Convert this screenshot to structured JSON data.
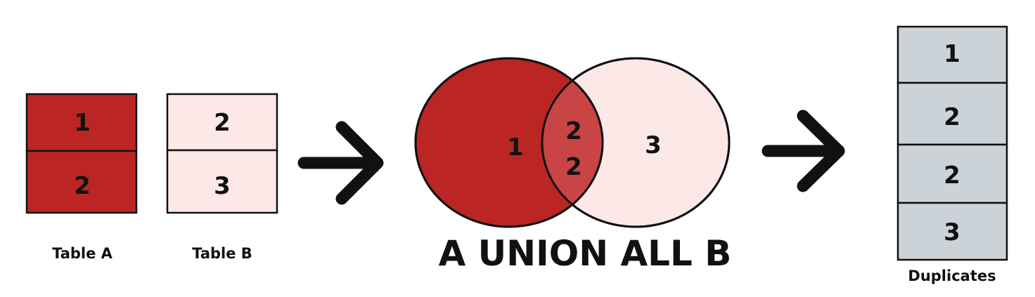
{
  "colors": {
    "table_a_fill": "#bb2524",
    "table_b_fill": "#fde8e8",
    "result_fill": "#cbd2d8",
    "overlap_fill": "#c94444",
    "stroke": "#111111"
  },
  "table_a": {
    "label": "Table A",
    "rows": [
      "1",
      "2"
    ]
  },
  "table_b": {
    "label": "Table B",
    "rows": [
      "2",
      "3"
    ]
  },
  "venn": {
    "left_value": "1",
    "overlap_values": [
      "2",
      "2"
    ],
    "right_value": "3",
    "caption": "A UNION ALL B"
  },
  "result": {
    "label": "Duplicates",
    "rows": [
      "1",
      "2",
      "2",
      "3"
    ]
  },
  "icons": [
    "arrow-right-icon",
    "arrow-right-icon"
  ]
}
